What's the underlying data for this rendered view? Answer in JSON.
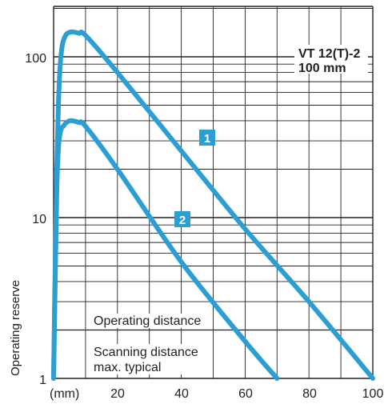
{
  "chart_data": {
    "type": "line",
    "title": "VT 12(T)-2",
    "subtitle": "100 mm",
    "xlabel": "(mm)",
    "ylabel": "Operating reserve",
    "xlim": [
      0,
      100
    ],
    "ylim": [
      1,
      200
    ],
    "yscale": "log",
    "x_ticks": [
      "20",
      "40",
      "60",
      "80",
      "100"
    ],
    "y_ticks": [
      "1",
      "10",
      "100"
    ],
    "grid": true,
    "annotations": {
      "operating_distance": "Operating distance",
      "scanning_line1": "Scanning distance",
      "scanning_line2": "max. typical"
    },
    "series": [
      {
        "name": "1",
        "color": "#2b9fd4",
        "x": [
          0,
          0.5,
          1,
          1.5,
          2,
          2.5,
          3,
          4,
          5,
          6,
          8,
          10,
          20,
          40,
          60,
          80,
          100
        ],
        "y": [
          1,
          5,
          20,
          50,
          85,
          110,
          125,
          138,
          142,
          143,
          140,
          136,
          80,
          26,
          8.5,
          3,
          1
        ]
      },
      {
        "name": "2",
        "color": "#2b9fd4",
        "x": [
          0,
          0.5,
          1,
          1.5,
          2,
          2.5,
          3,
          4,
          5,
          6,
          8,
          10,
          20,
          40,
          60,
          70
        ],
        "y": [
          1,
          4,
          15,
          27,
          33,
          36,
          37,
          39,
          40,
          40,
          39,
          37,
          20,
          5.3,
          1.7,
          1
        ]
      }
    ],
    "threshold": 2
  }
}
